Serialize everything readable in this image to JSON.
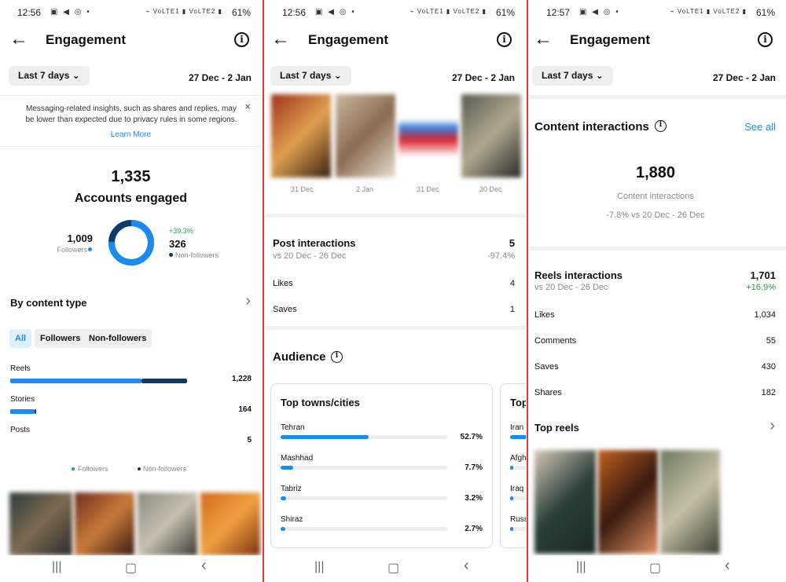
{
  "status": [
    {
      "time": "12:56",
      "icons": "▣ ◀ ◎ •",
      "sig": "⌁ VoLTE1 ▮ VoLTE2 ▮",
      "battery": "61%"
    },
    {
      "time": "12:56",
      "icons": "▣ ◀ ◎ •",
      "sig": "⌁ VoLTE1 ▮ VoLTE2 ▮",
      "battery": "61%"
    },
    {
      "time": "12:57",
      "icons": "▣ ◀ ◎ •",
      "sig": "⌁ VoLTE1 ▮ VoLTE2 ▮",
      "battery": "61%"
    }
  ],
  "header": {
    "title": "Engagement",
    "back": "←",
    "info": "i",
    "period": "Last 7 days",
    "date_range": "27 Dec - 2 Jan",
    "chevron": "⌄"
  },
  "colors": {
    "followers": "#1a8cf0",
    "non_followers": "#0d3a6b",
    "positive": "#2e9c4a",
    "divider": "#e53935",
    "link": "#1a8cf0"
  },
  "p1": {
    "notice": "Messaging-related insights, such as shares and replies, may be lower than expected due to privacy rules in some regions.",
    "notice_close": "×",
    "learn_more": "Learn More",
    "accounts_count": "1,335",
    "accounts_label": "Accounts engaged",
    "followers_count": "1,009",
    "followers_label": "Followers",
    "change": "+39.3%",
    "non_followers_count": "326",
    "non_followers_label": "Non-followers",
    "followers_share": 0.756,
    "by_content_type": "By content type",
    "chevron": "›",
    "tabs": [
      "All",
      "Followers",
      "Non-followers"
    ],
    "rows": [
      {
        "label": "Reels",
        "value": "1,228",
        "followers": 0.72,
        "non_followers": 0.25
      },
      {
        "label": "Stories",
        "value": "164",
        "followers": 0.135,
        "non_followers": 0.01
      },
      {
        "label": "Posts",
        "value": "5",
        "followers": 0,
        "non_followers": 0
      }
    ],
    "legend_followers": "Followers",
    "legend_non": "Non-followers"
  },
  "p2": {
    "thumb_dates": [
      "31 Dec",
      "2 Jan",
      "31 Dec",
      "30 Dec"
    ],
    "post_interactions": "Post interactions",
    "post_value": "5",
    "post_vs": "vs 20 Dec - 26 Dec",
    "post_change": "-97.4%",
    "likes_label": "Likes",
    "likes_value": "4",
    "saves_label": "Saves",
    "saves_value": "1",
    "audience": "Audience",
    "card_title": "Top towns/cities",
    "cities": [
      {
        "name": "Tehran",
        "pct": "52.7%",
        "value": 0.527
      },
      {
        "name": "Mashhad",
        "pct": "7.7%",
        "value": 0.077
      },
      {
        "name": "Tabriz",
        "pct": "3.2%",
        "value": 0.032
      },
      {
        "name": "Shiraz",
        "pct": "2.7%",
        "value": 0.027
      }
    ],
    "card2_title": "Top",
    "countries": [
      "Iran",
      "Afgh",
      "Iraq",
      "Russ"
    ],
    "country_fills": [
      0.85,
      0.05,
      0.05,
      0.04
    ]
  },
  "p3": {
    "content_interactions": "Content interactions",
    "see_all": "See all",
    "total": "1,880",
    "total_label": "Content interactions",
    "total_change": "-7.8% vs 20 Dec - 26 Dec",
    "reels_interactions": "Reels interactions",
    "reels_value": "1,701",
    "reels_vs": "vs 20 Dec - 26 Dec",
    "reels_change": "+16.9%",
    "metrics": [
      {
        "label": "Likes",
        "value": "1,034"
      },
      {
        "label": "Comments",
        "value": "55"
      },
      {
        "label": "Saves",
        "value": "430"
      },
      {
        "label": "Shares",
        "value": "182"
      }
    ],
    "top_reels": "Top reels",
    "chevron": "›"
  },
  "nav": {
    "recents": "|||",
    "home": "▢",
    "back": "‹"
  }
}
